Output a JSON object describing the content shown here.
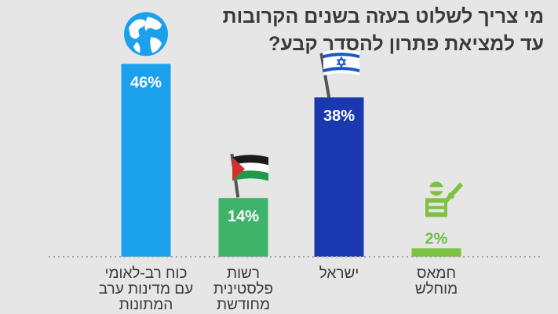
{
  "chart_data": {
    "type": "bar",
    "title_lines": [
      "מי צריך לשלוט בעזה בשנים הקרובות",
      "עד למציאת פתרון להסדר קבע?"
    ],
    "categories": [
      "כוח רב-לאומי\nעם מדינות ערב\nהמתונות",
      "רשות\nפלסטינית\nמחודשת",
      "ישראל",
      "חמאס\nמוחלש"
    ],
    "values": [
      46,
      14,
      38,
      2
    ],
    "value_labels": [
      "46%",
      "14%",
      "38%",
      "2%"
    ],
    "unit": "%",
    "icons": [
      "globe-icon",
      "palestinian-flag-icon",
      "israeli-flag-icon",
      "hamas-fighter-icon"
    ],
    "colors": [
      "#1ba1ec",
      "#3fb36a",
      "#1a38b0",
      "#7ec242"
    ],
    "ylim": [
      0,
      50
    ],
    "grid": false,
    "legend": "none"
  }
}
